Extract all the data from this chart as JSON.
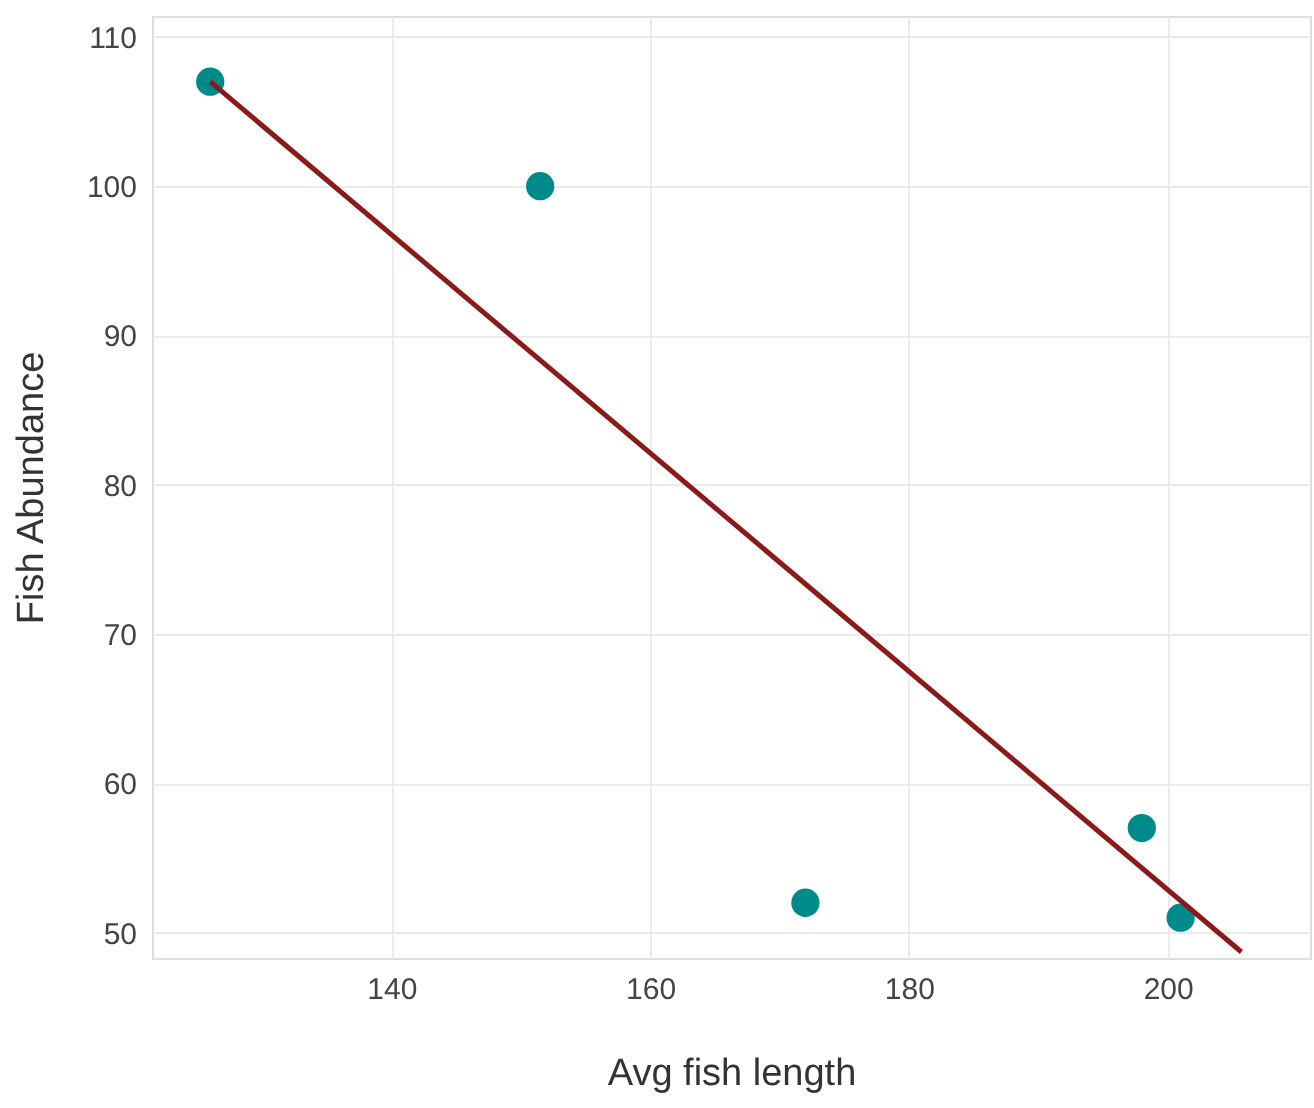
{
  "chart_data": {
    "type": "scatter",
    "xlabel": "Avg fish length",
    "ylabel": "Fish Abundance",
    "xlim": [
      121.5,
      211
    ],
    "ylim": [
      48.3,
      111.4
    ],
    "xticks": [
      140,
      160,
      180,
      200
    ],
    "yticks": [
      50,
      60,
      70,
      80,
      90,
      100,
      110
    ],
    "grid": true,
    "series": [
      {
        "marker": "circle",
        "color": "#008b8b",
        "x": [
          126,
          151.5,
          172,
          198,
          201
        ],
        "values": [
          107,
          100,
          52,
          57,
          51
        ]
      },
      {
        "type": "line",
        "color": "#8b1a1a",
        "x": [
          126,
          205.7
        ],
        "values": [
          107,
          48.7
        ]
      }
    ]
  }
}
